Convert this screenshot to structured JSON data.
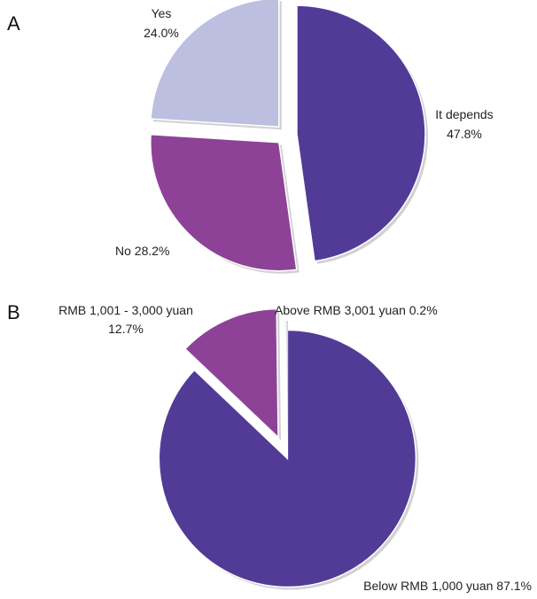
{
  "chart_data": [
    {
      "type": "pie",
      "panel": "A",
      "slices": [
        {
          "label": "It depends",
          "value": 47.8,
          "value_label": "47.8%",
          "color": "#523b96"
        },
        {
          "label": "No 28.2%",
          "value": 28.2,
          "color": "#8d4298"
        },
        {
          "label": "Yes",
          "value": 24.0,
          "value_label": "24.0%",
          "color": "#bdbfe1"
        }
      ]
    },
    {
      "type": "pie",
      "panel": "B",
      "slices": [
        {
          "label": "Below RMB 1,000 yuan 87.1%",
          "value": 87.1,
          "color": "#523b96"
        },
        {
          "label": "RMB 1,001 - 3,000 yuan",
          "value": 12.7,
          "value_label": "12.7%",
          "color": "#8d4298"
        },
        {
          "label": "Above RMB 3,001 yuan 0.2%",
          "value": 0.2,
          "color": "#bdbfe1"
        }
      ]
    }
  ]
}
